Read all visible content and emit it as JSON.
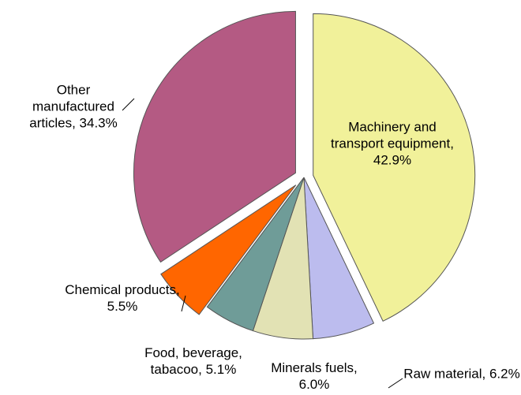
{
  "chart_data": {
    "type": "pie",
    "values": [
      42.9,
      6.2,
      6.0,
      5.1,
      5.5,
      34.3
    ],
    "value_labels": [
      "Machinery and transport equipment, 42.9%",
      "Raw material, 6.2%",
      "Minerals fuels, 6.0%",
      "Food, beverage, tabacoo, 5.1%",
      "Chemical products, 5.5%",
      "Other manufactured articles, 34.3%"
    ],
    "colors": [
      "#f1f19a",
      "#bcbcee",
      "#e2e2b4",
      "#6f9c98",
      "#ff6600",
      "#b45a83"
    ]
  }
}
